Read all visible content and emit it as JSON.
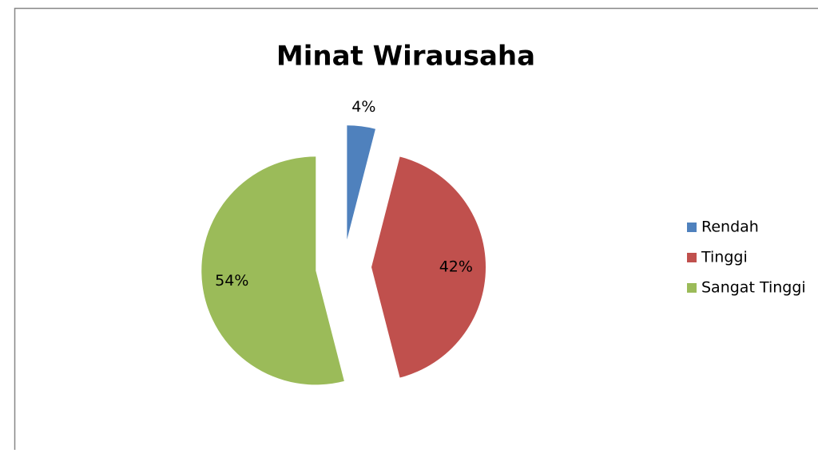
{
  "chart_data": {
    "type": "pie",
    "title": "Minat Wirausaha",
    "categories": [
      "Rendah",
      "Tinggi",
      "Sangat Tinggi"
    ],
    "values": [
      4,
      42,
      54
    ],
    "value_labels": [
      "4%",
      "42%",
      "54%"
    ],
    "colors": [
      "#4f81bd",
      "#c0504d",
      "#9bbb59"
    ],
    "exploded": true,
    "legend": "right"
  }
}
